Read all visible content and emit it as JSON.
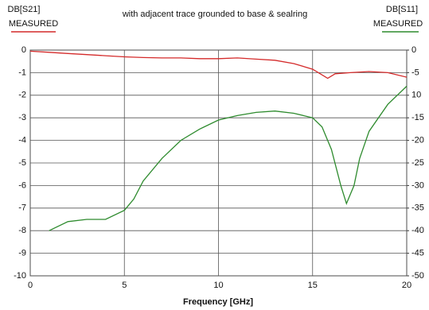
{
  "chart_data": {
    "type": "line",
    "title": "with adjacent trace grounded to base & sealring",
    "xlabel": "Frequency [GHz]",
    "ylabel": [
      "DB[S21]",
      "MEASURED"
    ],
    "y2label": [
      "DB[S11]",
      "MEASURED"
    ],
    "xlim": [
      0,
      20
    ],
    "xticks": [
      0,
      5,
      10,
      15,
      20
    ],
    "ylim": [
      -10,
      0
    ],
    "yticks": [
      0,
      -1,
      -2,
      -3,
      -4,
      -5,
      -6,
      -7,
      -8,
      -9,
      -10
    ],
    "y2lim": [
      -50,
      0
    ],
    "y2ticks": [
      0,
      -5,
      {
        "value": -10,
        "label": "10"
      },
      -15,
      -20,
      -25,
      -30,
      -35,
      -40,
      -45,
      -50
    ],
    "grid": true,
    "series": [
      {
        "name": "DB[S21] MEASURED",
        "color": "#d42a2a",
        "x": [
          0,
          1,
          2,
          3,
          4,
          5,
          6,
          7,
          8,
          9,
          10,
          11,
          12,
          13,
          14,
          15,
          15.5,
          15.8,
          16.2,
          17,
          18,
          19,
          19.5,
          20
        ],
        "values": [
          -0.05,
          -0.1,
          -0.15,
          -0.2,
          -0.25,
          -0.3,
          -0.33,
          -0.35,
          -0.35,
          -0.38,
          -0.38,
          -0.35,
          -0.4,
          -0.45,
          -0.6,
          -0.85,
          -1.1,
          -1.25,
          -1.05,
          -1.0,
          -0.95,
          -1.0,
          -1.1,
          -1.2
        ]
      },
      {
        "name": "DB[S11] MEASURED",
        "color": "#2e8b2e",
        "axis": "y2",
        "x": [
          1,
          2,
          3,
          4,
          5,
          5.5,
          6,
          7,
          8,
          9,
          10,
          11,
          12,
          13,
          14,
          15,
          15.5,
          16,
          16.5,
          16.8,
          17.2,
          17.5,
          18,
          19,
          20
        ],
        "values": [
          -40,
          -38,
          -37.5,
          -37.5,
          -35.5,
          -33,
          -29,
          -24,
          -20,
          -17.5,
          -15.5,
          -14.5,
          -13.8,
          -13.5,
          -14,
          -15,
          -17,
          -22,
          -30,
          -34,
          -30,
          -24,
          -18,
          -12,
          -8
        ]
      }
    ]
  }
}
